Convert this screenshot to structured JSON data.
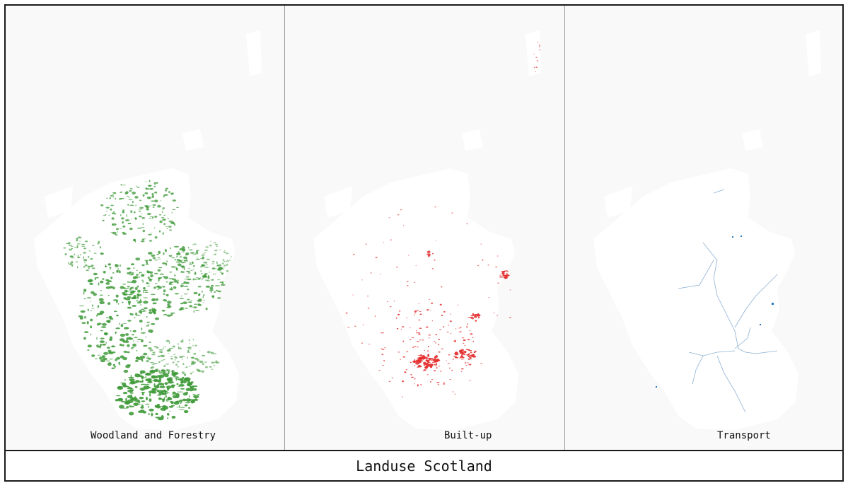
{
  "title": "Landuse Scotland",
  "panels": [
    {
      "label": "Woodland and Forestry",
      "color": "#3f9a3a",
      "layer": "woodland"
    },
    {
      "label": "Built-up",
      "color": "#e53030",
      "layer": "built-up"
    },
    {
      "label": "Transport",
      "color": "#5b8fc0",
      "layer": "transport"
    }
  ],
  "colors": {
    "land": "#ffffff",
    "sea": "#f9f9f9",
    "border": "#1a1a1a",
    "divider": "#9a9a9a"
  }
}
